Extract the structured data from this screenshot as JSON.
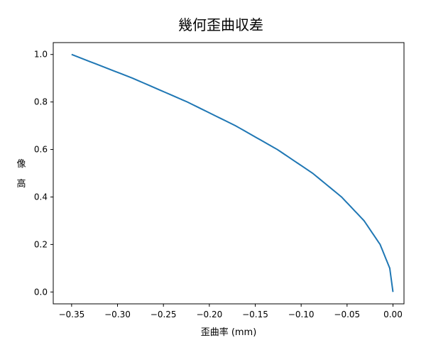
{
  "chart_data": {
    "type": "line",
    "title": "幾何歪曲収差",
    "xlabel": "歪曲率 (mm)",
    "ylabel": "像高",
    "xlim": [
      -0.37,
      0.012
    ],
    "ylim": [
      -0.05,
      1.05
    ],
    "xticks": [
      -0.35,
      -0.3,
      -0.25,
      -0.2,
      -0.15,
      -0.1,
      -0.05,
      0.0
    ],
    "xtick_labels": [
      "−0.35",
      "−0.30",
      "−0.25",
      "−0.20",
      "−0.15",
      "−0.10",
      "−0.05",
      "0.00"
    ],
    "yticks": [
      0.0,
      0.2,
      0.4,
      0.6,
      0.8,
      1.0
    ],
    "ytick_labels": [
      "0.0",
      "0.2",
      "0.4",
      "0.6",
      "0.8",
      "1.0"
    ],
    "grid": false,
    "series": [
      {
        "color": "#1f77b4",
        "x": [
          0.0,
          -0.0035,
          -0.014,
          -0.0315,
          -0.056,
          -0.0875,
          -0.126,
          -0.1715,
          -0.224,
          -0.2835,
          -0.35
        ],
        "y": [
          0.0,
          0.1,
          0.2,
          0.3,
          0.4,
          0.5,
          0.6,
          0.7,
          0.8,
          0.9,
          1.0
        ]
      }
    ]
  }
}
